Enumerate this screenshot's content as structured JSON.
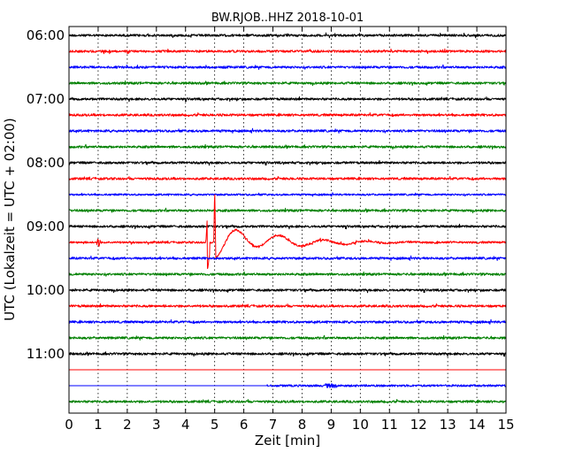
{
  "chart_data": {
    "type": "line",
    "title": "BW.RJOB..HHZ 2018-10-01",
    "xlabel": "Zeit  [min]",
    "ylabel": "UTC (Lokalzeit = UTC + 02:00)",
    "xlim": [
      0,
      15
    ],
    "x_ticks": [
      "0",
      "1",
      "2",
      "3",
      "4",
      "5",
      "6",
      "7",
      "8",
      "9",
      "10",
      "11",
      "12",
      "13",
      "14",
      "15"
    ],
    "y_ticks": [
      "06:00",
      "07:00",
      "08:00",
      "09:00",
      "10:00",
      "11:00"
    ],
    "trace_interval_min": 15,
    "trace_colors": [
      "#000000",
      "#ff0000",
      "#0000ff",
      "#008000"
    ],
    "grid": "vertical dotted at each minute",
    "traces": [
      {
        "start": "06:00",
        "color": "#000000",
        "noise": 0.5
      },
      {
        "start": "06:15",
        "color": "#ff0000",
        "noise": 0.5
      },
      {
        "start": "06:30",
        "color": "#0000ff",
        "noise": 0.5
      },
      {
        "start": "06:45",
        "color": "#008000",
        "noise": 0.5
      },
      {
        "start": "07:00",
        "color": "#000000",
        "noise": 0.5
      },
      {
        "start": "07:15",
        "color": "#ff0000",
        "noise": 0.5
      },
      {
        "start": "07:30",
        "color": "#0000ff",
        "noise": 0.5
      },
      {
        "start": "07:45",
        "color": "#008000",
        "noise": 0.5
      },
      {
        "start": "08:00",
        "color": "#000000",
        "noise": 0.5
      },
      {
        "start": "08:15",
        "color": "#ff0000",
        "noise": 0.5
      },
      {
        "start": "08:30",
        "color": "#0000ff",
        "noise": 0.4
      },
      {
        "start": "08:45",
        "color": "#008000",
        "noise": 0.5
      },
      {
        "start": "09:00",
        "color": "#000000",
        "noise": 0.5
      },
      {
        "start": "09:15",
        "color": "#ff0000",
        "noise": 0.4,
        "event": {
          "onset_min": 4.75,
          "peak_min": 5.0
        }
      },
      {
        "start": "09:30",
        "color": "#0000ff",
        "noise": 0.5
      },
      {
        "start": "09:45",
        "color": "#008000",
        "noise": 0.5
      },
      {
        "start": "10:00",
        "color": "#000000",
        "noise": 0.5
      },
      {
        "start": "10:15",
        "color": "#ff0000",
        "noise": 0.5
      },
      {
        "start": "10:30",
        "color": "#0000ff",
        "noise": 0.5
      },
      {
        "start": "10:45",
        "color": "#008000",
        "noise": 0.5
      },
      {
        "start": "11:00",
        "color": "#000000",
        "noise": 0.5
      },
      {
        "start": "11:15",
        "color": "#ff0000",
        "noise": 0.0
      },
      {
        "start": "11:30",
        "color": "#0000ff",
        "noise": 0.0,
        "data_resumes_min": 6.8
      },
      {
        "start": "11:45",
        "color": "#008000",
        "noise": 0.5
      }
    ]
  }
}
